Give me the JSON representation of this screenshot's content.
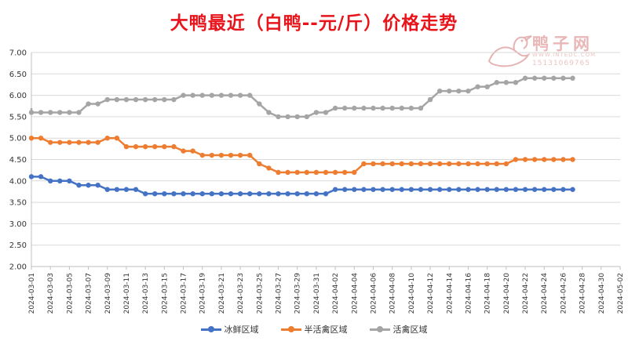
{
  "chart_data": {
    "type": "line",
    "title": "大鸭最近（白鸭--元/斤）价格走势",
    "xlabel": "",
    "ylabel": "",
    "ylim": [
      2.0,
      7.0
    ],
    "yticks": [
      "2.00",
      "2.50",
      "3.00",
      "3.50",
      "4.00",
      "4.50",
      "5.00",
      "5.50",
      "6.00",
      "6.50",
      "7.00"
    ],
    "x_ticks": [
      "2024-03-01",
      "2024-03-03",
      "2024-03-05",
      "2024-03-07",
      "2024-03-09",
      "2024-03-11",
      "2024-03-13",
      "2024-03-15",
      "2024-03-17",
      "2024-03-19",
      "2024-03-21",
      "2024-03-23",
      "2024-03-25",
      "2024-03-27",
      "2024-03-29",
      "2024-03-31",
      "2024-04-02",
      "2024-04-04",
      "2024-04-06",
      "2024-04-08",
      "2024-04-10",
      "2024-04-12",
      "2024-04-14",
      "2024-04-16",
      "2024-04-18",
      "2024-04-20",
      "2024-04-22",
      "2024-04-24",
      "2024-04-26",
      "2024-04-28",
      "2024-04-30",
      "2024-05-02"
    ],
    "x_start": "2024-03-01",
    "x_end": "2024-05-02",
    "grid": true,
    "legend_position": "bottom",
    "series": [
      {
        "name": "冰鲜区域",
        "color": "#4472c4",
        "x": [
          "2024-03-01",
          "2024-03-02",
          "2024-03-03",
          "2024-03-04",
          "2024-03-05",
          "2024-03-06",
          "2024-03-07",
          "2024-03-08",
          "2024-03-09",
          "2024-03-10",
          "2024-03-11",
          "2024-03-12",
          "2024-03-13",
          "2024-03-14",
          "2024-03-15",
          "2024-03-16",
          "2024-03-17",
          "2024-03-18",
          "2024-03-19",
          "2024-03-20",
          "2024-03-21",
          "2024-03-22",
          "2024-03-23",
          "2024-03-24",
          "2024-03-25",
          "2024-03-26",
          "2024-03-27",
          "2024-03-28",
          "2024-03-29",
          "2024-03-30",
          "2024-03-31",
          "2024-04-01",
          "2024-04-02",
          "2024-04-03",
          "2024-04-04",
          "2024-04-05",
          "2024-04-06",
          "2024-04-07",
          "2024-04-08",
          "2024-04-09",
          "2024-04-10",
          "2024-04-11",
          "2024-04-12",
          "2024-04-13",
          "2024-04-14",
          "2024-04-15",
          "2024-04-16",
          "2024-04-17",
          "2024-04-18",
          "2024-04-19",
          "2024-04-20",
          "2024-04-21",
          "2024-04-22",
          "2024-04-23",
          "2024-04-24",
          "2024-04-25",
          "2024-04-26",
          "2024-04-27"
        ],
        "values": [
          4.1,
          4.1,
          4.0,
          4.0,
          4.0,
          3.9,
          3.9,
          3.9,
          3.8,
          3.8,
          3.8,
          3.8,
          3.7,
          3.7,
          3.7,
          3.7,
          3.7,
          3.7,
          3.7,
          3.7,
          3.7,
          3.7,
          3.7,
          3.7,
          3.7,
          3.7,
          3.7,
          3.7,
          3.7,
          3.7,
          3.7,
          3.7,
          3.8,
          3.8,
          3.8,
          3.8,
          3.8,
          3.8,
          3.8,
          3.8,
          3.8,
          3.8,
          3.8,
          3.8,
          3.8,
          3.8,
          3.8,
          3.8,
          3.8,
          3.8,
          3.8,
          3.8,
          3.8,
          3.8,
          3.8,
          3.8,
          3.8,
          3.8
        ]
      },
      {
        "name": "半活禽区域",
        "color": "#ed7d31",
        "x": [
          "2024-03-01",
          "2024-03-02",
          "2024-03-03",
          "2024-03-04",
          "2024-03-05",
          "2024-03-06",
          "2024-03-07",
          "2024-03-08",
          "2024-03-09",
          "2024-03-10",
          "2024-03-11",
          "2024-03-12",
          "2024-03-13",
          "2024-03-14",
          "2024-03-15",
          "2024-03-16",
          "2024-03-17",
          "2024-03-18",
          "2024-03-19",
          "2024-03-20",
          "2024-03-21",
          "2024-03-22",
          "2024-03-23",
          "2024-03-24",
          "2024-03-25",
          "2024-03-26",
          "2024-03-27",
          "2024-03-28",
          "2024-03-29",
          "2024-03-30",
          "2024-03-31",
          "2024-04-01",
          "2024-04-02",
          "2024-04-03",
          "2024-04-04",
          "2024-04-05",
          "2024-04-06",
          "2024-04-07",
          "2024-04-08",
          "2024-04-09",
          "2024-04-10",
          "2024-04-11",
          "2024-04-12",
          "2024-04-13",
          "2024-04-14",
          "2024-04-15",
          "2024-04-16",
          "2024-04-17",
          "2024-04-18",
          "2024-04-19",
          "2024-04-20",
          "2024-04-21",
          "2024-04-22",
          "2024-04-23",
          "2024-04-24",
          "2024-04-25",
          "2024-04-26",
          "2024-04-27"
        ],
        "values": [
          5.0,
          5.0,
          4.9,
          4.9,
          4.9,
          4.9,
          4.9,
          4.9,
          5.0,
          5.0,
          4.8,
          4.8,
          4.8,
          4.8,
          4.8,
          4.8,
          4.7,
          4.7,
          4.6,
          4.6,
          4.6,
          4.6,
          4.6,
          4.6,
          4.4,
          4.3,
          4.2,
          4.2,
          4.2,
          4.2,
          4.2,
          4.2,
          4.2,
          4.2,
          4.2,
          4.4,
          4.4,
          4.4,
          4.4,
          4.4,
          4.4,
          4.4,
          4.4,
          4.4,
          4.4,
          4.4,
          4.4,
          4.4,
          4.4,
          4.4,
          4.4,
          4.5,
          4.5,
          4.5,
          4.5,
          4.5,
          4.5,
          4.5
        ]
      },
      {
        "name": "活禽区域",
        "color": "#a5a5a5",
        "x": [
          "2024-02-29",
          "2024-03-01",
          "2024-03-02",
          "2024-03-03",
          "2024-03-04",
          "2024-03-05",
          "2024-03-06",
          "2024-03-07",
          "2024-03-08",
          "2024-03-09",
          "2024-03-10",
          "2024-03-11",
          "2024-03-12",
          "2024-03-13",
          "2024-03-14",
          "2024-03-15",
          "2024-03-16",
          "2024-03-17",
          "2024-03-18",
          "2024-03-19",
          "2024-03-20",
          "2024-03-21",
          "2024-03-22",
          "2024-03-23",
          "2024-03-24",
          "2024-03-25",
          "2024-03-26",
          "2024-03-27",
          "2024-03-28",
          "2024-03-29",
          "2024-03-30",
          "2024-03-31",
          "2024-04-01",
          "2024-04-02",
          "2024-04-03",
          "2024-04-04",
          "2024-04-05",
          "2024-04-06",
          "2024-04-07",
          "2024-04-08",
          "2024-04-09",
          "2024-04-10",
          "2024-04-11",
          "2024-04-12",
          "2024-04-13",
          "2024-04-14",
          "2024-04-15",
          "2024-04-16",
          "2024-04-17",
          "2024-04-18",
          "2024-04-19",
          "2024-04-20",
          "2024-04-21",
          "2024-04-22",
          "2024-04-23",
          "2024-04-24",
          "2024-04-25",
          "2024-04-26",
          "2024-04-27"
        ],
        "values": [
          5.7,
          5.6,
          5.6,
          5.6,
          5.6,
          5.6,
          5.6,
          5.8,
          5.8,
          5.9,
          5.9,
          5.9,
          5.9,
          5.9,
          5.9,
          5.9,
          5.9,
          6.0,
          6.0,
          6.0,
          6.0,
          6.0,
          6.0,
          6.0,
          6.0,
          5.8,
          5.6,
          5.5,
          5.5,
          5.5,
          5.5,
          5.6,
          5.6,
          5.7,
          5.7,
          5.7,
          5.7,
          5.7,
          5.7,
          5.7,
          5.7,
          5.7,
          5.7,
          5.9,
          6.1,
          6.1,
          6.1,
          6.1,
          6.2,
          6.2,
          6.3,
          6.3,
          6.3,
          6.4,
          6.4,
          6.4,
          6.4,
          6.4,
          6.4
        ]
      }
    ]
  },
  "watermark": {
    "brand": "鸭子网",
    "site": "WWW.INTEDC.COM",
    "phone": "15131069765",
    "color": "#e6a9a9"
  }
}
